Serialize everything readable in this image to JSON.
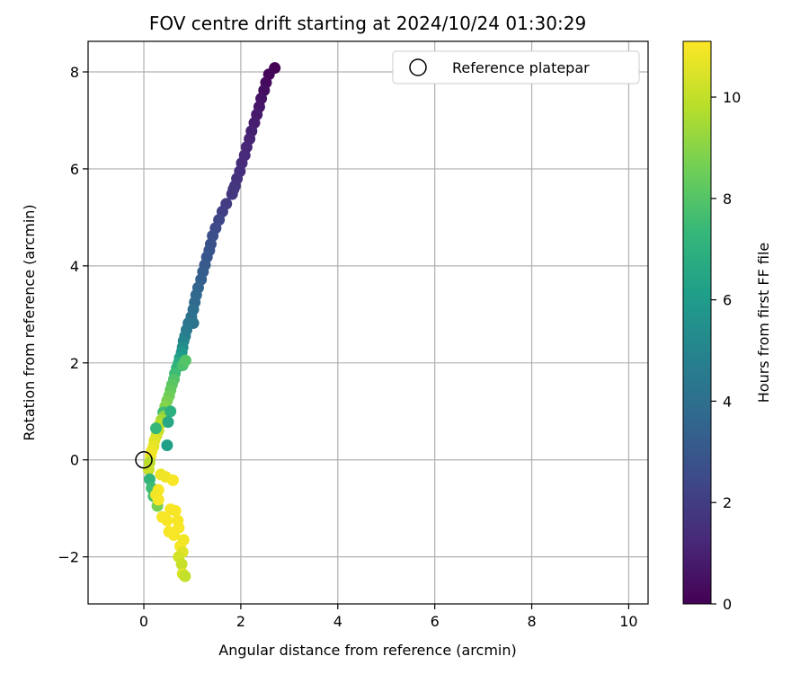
{
  "chart_data": {
    "type": "scatter",
    "title": "FOV centre drift starting at 2024/10/24 01:30:29",
    "xlabel": "Angular distance from reference (arcmin)",
    "ylabel": "Rotation from reference (arcmin)",
    "xlim": [
      -1.15,
      10.4
    ],
    "ylim": [
      -2.97,
      8.63
    ],
    "xticks": [
      0,
      2,
      4,
      6,
      8,
      10
    ],
    "yticks": [
      -2,
      0,
      2,
      4,
      6,
      8
    ],
    "xtick_labels": [
      "0",
      "2",
      "4",
      "6",
      "8",
      "10"
    ],
    "ytick_labels": [
      "−2",
      "0",
      "2",
      "4",
      "6",
      "8"
    ],
    "grid": true,
    "legend": {
      "position": "top-right",
      "entries": [
        "Reference platepar"
      ]
    },
    "reference_point": {
      "x": 0,
      "y": 0
    },
    "colorbar": {
      "label": "Hours from first FF file",
      "range": [
        0,
        11.1
      ],
      "ticks": [
        0,
        2,
        4,
        6,
        8,
        10
      ],
      "tick_labels": [
        "0",
        "2",
        "4",
        "6",
        "8",
        "10"
      ],
      "colormap": [
        "#440154",
        "#482878",
        "#3e4989",
        "#31688e",
        "#26828e",
        "#1f9e89",
        "#35b779",
        "#6ece58",
        "#b5de2b",
        "#fde725"
      ]
    },
    "points": [
      {
        "x": 2.7,
        "y": 8.08,
        "t": 0.05
      },
      {
        "x": 2.58,
        "y": 7.95,
        "t": 0.15
      },
      {
        "x": 2.52,
        "y": 7.78,
        "t": 0.3
      },
      {
        "x": 2.48,
        "y": 7.62,
        "t": 0.45
      },
      {
        "x": 2.42,
        "y": 7.45,
        "t": 0.6
      },
      {
        "x": 2.38,
        "y": 7.28,
        "t": 0.7
      },
      {
        "x": 2.33,
        "y": 7.12,
        "t": 0.8
      },
      {
        "x": 2.28,
        "y": 6.95,
        "t": 0.9
      },
      {
        "x": 2.22,
        "y": 6.78,
        "t": 1.0
      },
      {
        "x": 2.18,
        "y": 6.62,
        "t": 1.1
      },
      {
        "x": 2.12,
        "y": 6.45,
        "t": 1.2
      },
      {
        "x": 2.08,
        "y": 6.28,
        "t": 1.3
      },
      {
        "x": 2.02,
        "y": 6.12,
        "t": 1.4
      },
      {
        "x": 1.98,
        "y": 5.95,
        "t": 1.5
      },
      {
        "x": 1.92,
        "y": 5.8,
        "t": 1.6
      },
      {
        "x": 1.88,
        "y": 5.65,
        "t": 1.7
      },
      {
        "x": 1.82,
        "y": 5.48,
        "t": 1.8
      },
      {
        "x": 1.85,
        "y": 5.58,
        "t": 1.75
      },
      {
        "x": 1.7,
        "y": 5.28,
        "t": 2.0
      },
      {
        "x": 1.62,
        "y": 5.12,
        "t": 2.1
      },
      {
        "x": 1.55,
        "y": 4.95,
        "t": 2.3
      },
      {
        "x": 1.48,
        "y": 4.78,
        "t": 2.5
      },
      {
        "x": 1.42,
        "y": 4.62,
        "t": 2.7
      },
      {
        "x": 1.38,
        "y": 4.45,
        "t": 2.8
      },
      {
        "x": 1.35,
        "y": 4.32,
        "t": 2.9
      },
      {
        "x": 1.3,
        "y": 4.18,
        "t": 3.0
      },
      {
        "x": 1.26,
        "y": 4.02,
        "t": 3.1
      },
      {
        "x": 1.22,
        "y": 3.88,
        "t": 3.25
      },
      {
        "x": 1.18,
        "y": 3.72,
        "t": 3.4
      },
      {
        "x": 1.12,
        "y": 3.55,
        "t": 3.55
      },
      {
        "x": 1.08,
        "y": 3.4,
        "t": 3.7
      },
      {
        "x": 1.05,
        "y": 3.25,
        "t": 3.85
      },
      {
        "x": 1.02,
        "y": 3.1,
        "t": 4.0
      },
      {
        "x": 0.98,
        "y": 2.95,
        "t": 4.15
      },
      {
        "x": 1.02,
        "y": 2.82,
        "t": 4.2
      },
      {
        "x": 0.92,
        "y": 2.82,
        "t": 4.3
      },
      {
        "x": 0.88,
        "y": 2.68,
        "t": 4.5
      },
      {
        "x": 0.85,
        "y": 2.55,
        "t": 4.7
      },
      {
        "x": 0.82,
        "y": 2.45,
        "t": 5.0
      },
      {
        "x": 0.8,
        "y": 2.32,
        "t": 5.4
      },
      {
        "x": 0.78,
        "y": 2.22,
        "t": 5.8
      },
      {
        "x": 0.74,
        "y": 2.1,
        "t": 6.2
      },
      {
        "x": 0.72,
        "y": 2.0,
        "t": 6.8
      },
      {
        "x": 0.68,
        "y": 1.9,
        "t": 7.2
      },
      {
        "x": 0.64,
        "y": 1.78,
        "t": 7.6
      },
      {
        "x": 0.62,
        "y": 1.66,
        "t": 8.0
      },
      {
        "x": 0.58,
        "y": 1.55,
        "t": 8.2
      },
      {
        "x": 0.55,
        "y": 1.44,
        "t": 8.4
      },
      {
        "x": 0.52,
        "y": 1.32,
        "t": 8.6
      },
      {
        "x": 0.48,
        "y": 1.22,
        "t": 8.8
      },
      {
        "x": 0.44,
        "y": 1.1,
        "t": 9.0
      },
      {
        "x": 0.4,
        "y": 0.98,
        "t": 7.6
      },
      {
        "x": 0.42,
        "y": 0.9,
        "t": 9.2
      },
      {
        "x": 0.36,
        "y": 0.82,
        "t": 9.6
      },
      {
        "x": 0.32,
        "y": 0.72,
        "t": 9.9
      },
      {
        "x": 0.3,
        "y": 0.6,
        "t": 10.2
      },
      {
        "x": 0.26,
        "y": 0.5,
        "t": 10.4
      },
      {
        "x": 0.22,
        "y": 0.4,
        "t": 10.6
      },
      {
        "x": 0.2,
        "y": 0.28,
        "t": 10.7
      },
      {
        "x": 0.16,
        "y": 0.18,
        "t": 10.8
      },
      {
        "x": 0.14,
        "y": 0.08,
        "t": 10.9
      },
      {
        "x": 0.48,
        "y": 0.3,
        "t": 6.2
      },
      {
        "x": 0.55,
        "y": 1.0,
        "t": 7.0
      },
      {
        "x": 0.5,
        "y": 0.78,
        "t": 6.6
      },
      {
        "x": 0.8,
        "y": 1.95,
        "t": 7.9
      },
      {
        "x": 0.86,
        "y": 2.05,
        "t": 8.1
      },
      {
        "x": 0.25,
        "y": 0.65,
        "t": 7.4
      },
      {
        "x": 0.12,
        "y": -0.05,
        "t": 9.9
      },
      {
        "x": 0.1,
        "y": -0.2,
        "t": 10.2
      },
      {
        "x": 0.12,
        "y": -0.4,
        "t": 7.2
      },
      {
        "x": 0.16,
        "y": -0.58,
        "t": 7.6
      },
      {
        "x": 0.2,
        "y": -0.75,
        "t": 7.8
      },
      {
        "x": 0.28,
        "y": -0.95,
        "t": 8.8
      },
      {
        "x": 0.35,
        "y": -0.3,
        "t": 10.8
      },
      {
        "x": 0.45,
        "y": -0.35,
        "t": 10.9
      },
      {
        "x": 0.6,
        "y": -0.42,
        "t": 11.0
      },
      {
        "x": 0.3,
        "y": -0.62,
        "t": 11.0
      },
      {
        "x": 0.25,
        "y": -0.72,
        "t": 10.9
      },
      {
        "x": 0.3,
        "y": -0.82,
        "t": 11.0
      },
      {
        "x": 0.55,
        "y": -1.02,
        "t": 11.0
      },
      {
        "x": 0.65,
        "y": -1.05,
        "t": 11.0
      },
      {
        "x": 0.38,
        "y": -1.18,
        "t": 11.0
      },
      {
        "x": 0.48,
        "y": -1.25,
        "t": 11.0
      },
      {
        "x": 0.7,
        "y": -1.25,
        "t": 11.0
      },
      {
        "x": 0.72,
        "y": -1.4,
        "t": 11.0
      },
      {
        "x": 0.52,
        "y": -1.48,
        "t": 11.0
      },
      {
        "x": 0.62,
        "y": -1.55,
        "t": 11.0
      },
      {
        "x": 0.82,
        "y": -1.65,
        "t": 10.9
      },
      {
        "x": 0.75,
        "y": -1.78,
        "t": 11.0
      },
      {
        "x": 0.8,
        "y": -1.9,
        "t": 10.6
      },
      {
        "x": 0.72,
        "y": -2.0,
        "t": 10.4
      },
      {
        "x": 0.78,
        "y": -2.15,
        "t": 10.2
      },
      {
        "x": 0.8,
        "y": -2.35,
        "t": 10.5
      },
      {
        "x": 0.85,
        "y": -2.4,
        "t": 10.1
      }
    ]
  }
}
